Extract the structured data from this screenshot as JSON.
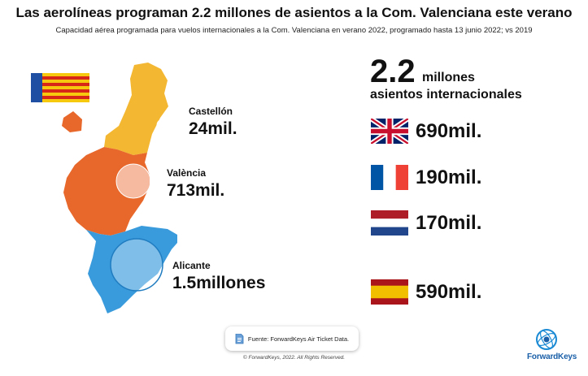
{
  "header": {
    "title": "Las aerolíneas programan 2.2 millones de asientos a la Com. Valenciana este verano",
    "subtitle": "Capacidad aérea programada para vuelos internacionales a la Com. Valenciana en verano 2022, programado hasta 13 junio 2022; vs 2019"
  },
  "regions": [
    {
      "name": "Castellón",
      "value": "24mil.",
      "color": "#F4B731"
    },
    {
      "name": "València",
      "value": "713mil.",
      "color": "#E8672A"
    },
    {
      "name": "Alicante",
      "value": "1.5millones",
      "color": "#3A9BDC"
    }
  ],
  "total": {
    "number": "2.2",
    "unit": "millones",
    "label": "asientos internacionales"
  },
  "countries": [
    {
      "flag": "uk-flag-icon",
      "value": "690mil."
    },
    {
      "flag": "france-flag-icon",
      "value": "190mil."
    },
    {
      "flag": "netherlands-flag-icon",
      "value": "170mil."
    },
    {
      "flag": "spain-flag-icon",
      "value": "590mil."
    }
  ],
  "footer": {
    "source": "Fuente: ForwardKeys Air Ticket Data.",
    "copyright": "© ForwardKeys, 2022. All Rights Reserved.",
    "brand": "ForwardKeys"
  }
}
